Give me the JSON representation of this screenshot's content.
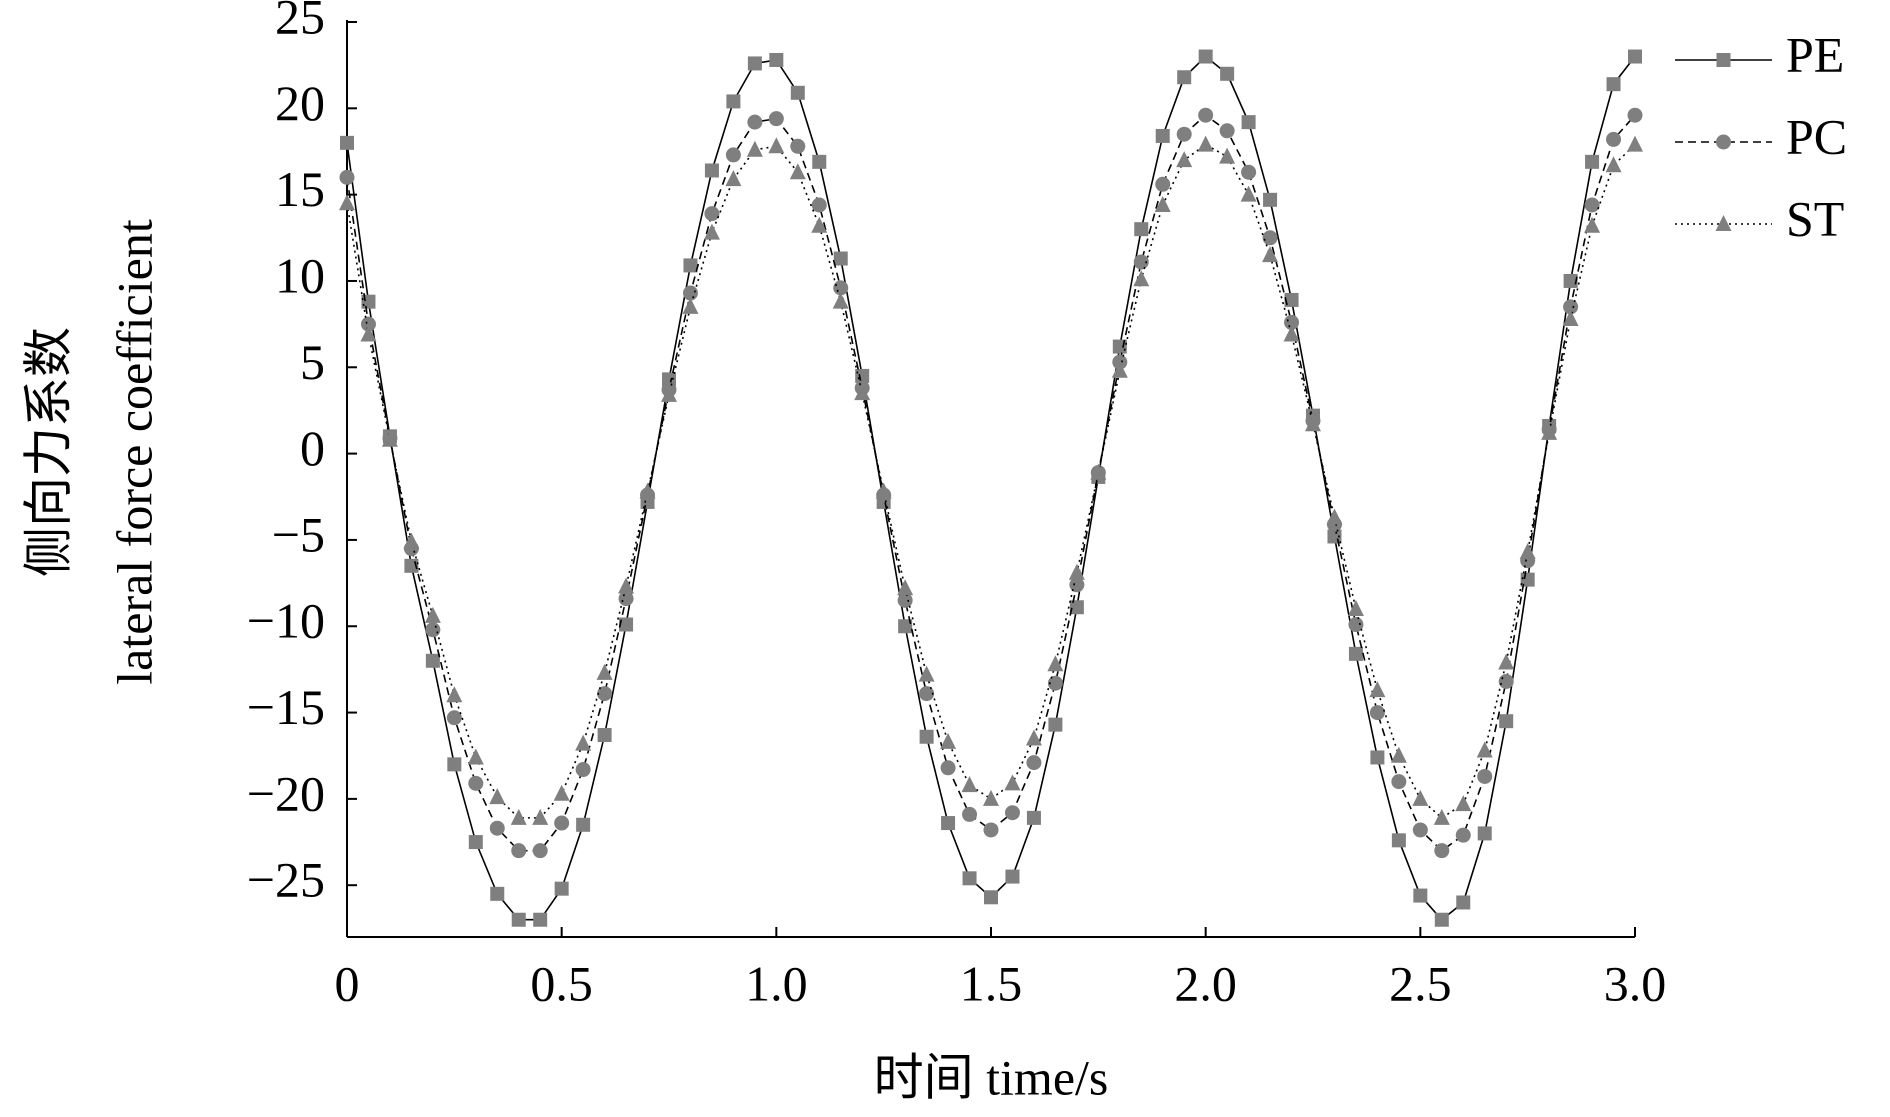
{
  "chart_data": {
    "type": "line",
    "xlabel": "时间 time/s",
    "ylabel": [
      "侧向力系数",
      "lateral force coefficient"
    ],
    "x": [
      0,
      0.05,
      0.1,
      0.15,
      0.2,
      0.25,
      0.3,
      0.35,
      0.4,
      0.45,
      0.5,
      0.55,
      0.6,
      0.65,
      0.7,
      0.75,
      0.8,
      0.85,
      0.9,
      0.95,
      1,
      1.05,
      1.1,
      1.15,
      1.2,
      1.25,
      1.3,
      1.35,
      1.4,
      1.45,
      1.5,
      1.55,
      1.6,
      1.65,
      1.7,
      1.75,
      1.8,
      1.85,
      1.9,
      1.95,
      2,
      2.05,
      2.1,
      2.15,
      2.2,
      2.25,
      2.3,
      2.35,
      2.4,
      2.45,
      2.5,
      2.55,
      2.6,
      2.65,
      2.7,
      2.75,
      2.8,
      2.85,
      2.9,
      2.95,
      3
    ],
    "series": [
      {
        "name": "PE",
        "color": "#7f7f7f",
        "line_color": "#000000",
        "marker": "square",
        "line_style": "solid",
        "values": [
          18,
          8.8,
          1,
          -6.5,
          -12,
          -18,
          -22.5,
          -25.5,
          -27,
          -27,
          -25.2,
          -21.5,
          -16.3,
          -9.9,
          -2.8,
          4.3,
          10.9,
          16.4,
          20.4,
          22.6,
          22.8,
          20.9,
          16.9,
          11.3,
          4.5,
          -2.8,
          -10,
          -16.4,
          -21.4,
          -24.6,
          -25.7,
          -24.5,
          -21.1,
          -15.7,
          -8.9,
          -1.35,
          6.2,
          13,
          18.4,
          21.8,
          23,
          22,
          19.2,
          14.7,
          8.9,
          2.2,
          -4.8,
          -11.6,
          -17.6,
          -22.4,
          -25.6,
          -27,
          -26,
          -22,
          -15.5,
          -7.3,
          1.6,
          10,
          16.9,
          21.4,
          23
        ]
      },
      {
        "name": "PC",
        "color": "#7f7f7f",
        "line_color": "#000000",
        "marker": "circle",
        "line_style": "dashed",
        "values": [
          16,
          7.5,
          0.9,
          -5.5,
          -10.2,
          -15.3,
          -19.1,
          -21.7,
          -23,
          -23,
          -21.4,
          -18.3,
          -13.9,
          -8.4,
          -2.4,
          3.7,
          9.3,
          13.9,
          17.3,
          19.2,
          19.4,
          17.8,
          14.4,
          9.6,
          3.8,
          -2.4,
          -8.5,
          -13.9,
          -18.2,
          -20.9,
          -21.8,
          -20.8,
          -17.9,
          -13.3,
          -7.6,
          -1.1,
          5.3,
          11.1,
          15.6,
          18.5,
          19.6,
          18.7,
          16.3,
          12.5,
          7.6,
          1.9,
          -4.1,
          -9.9,
          -15,
          -19,
          -21.8,
          -23,
          -22.1,
          -18.7,
          -13.2,
          -6.2,
          1.4,
          8.5,
          14.4,
          18.2,
          19.6
        ]
      },
      {
        "name": "ST",
        "color": "#7f7f7f",
        "line_color": "#000000",
        "marker": "triangle",
        "line_style": "dotted",
        "values": [
          14.5,
          6.9,
          0.8,
          -5.1,
          -9.4,
          -14,
          -17.6,
          -19.9,
          -21.1,
          -21.1,
          -19.7,
          -16.8,
          -12.7,
          -7.7,
          -2.2,
          3.4,
          8.5,
          12.8,
          15.9,
          17.6,
          17.8,
          16.3,
          13.2,
          8.8,
          3.5,
          -2.2,
          -7.8,
          -12.8,
          -16.7,
          -19.2,
          -20,
          -19.1,
          -16.5,
          -12.2,
          -6.9,
          -1.1,
          4.8,
          10.1,
          14.4,
          17,
          17.9,
          17.2,
          15,
          11.5,
          6.9,
          1.7,
          -3.7,
          -9,
          -13.7,
          -17.5,
          -20,
          -21.1,
          -20.3,
          -17.2,
          -12.1,
          -5.7,
          1.2,
          7.8,
          13.2,
          16.7,
          17.9
        ]
      }
    ],
    "xlim": [
      0,
      3
    ],
    "xticks": [
      0,
      0.5,
      {
        "value": 1,
        "label": "1.0"
      },
      1.5,
      {
        "value": 2,
        "label": "2.0"
      },
      2.5,
      {
        "value": 3,
        "label": "3.0"
      }
    ],
    "ylim": [
      -28,
      25
    ],
    "yticks": [
      {
        "value": -25,
        "label": "−25"
      },
      {
        "value": -20,
        "label": "−20"
      },
      {
        "value": -15,
        "label": "−15"
      },
      {
        "value": -10,
        "label": "−10"
      },
      {
        "value": -5,
        "label": "−5"
      },
      0,
      5,
      10,
      15,
      20,
      25
    ],
    "grid": false,
    "legend": "upper right"
  }
}
